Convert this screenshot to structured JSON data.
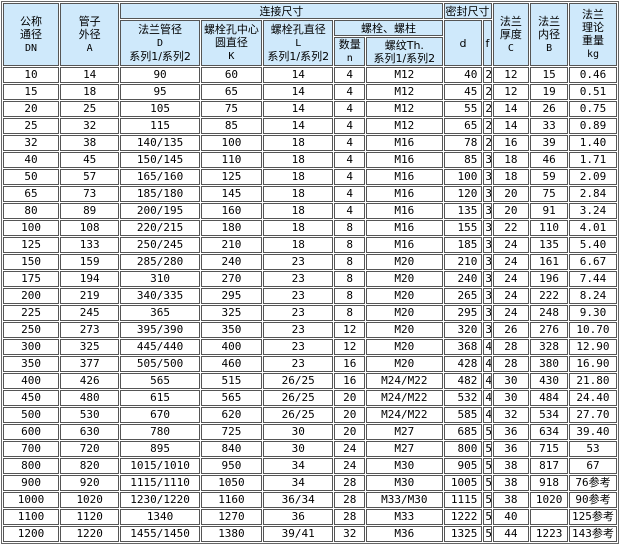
{
  "header": {
    "dn": [
      "公称",
      "通径",
      "DN"
    ],
    "a": [
      "管子",
      "外径",
      "A"
    ],
    "conn": "连接尺寸",
    "seal": "密封尺寸",
    "c": [
      "法兰",
      "厚度",
      "C"
    ],
    "b": [
      "法兰",
      "内径",
      "B"
    ],
    "kg": [
      "法兰",
      "理论",
      "重量",
      "kg"
    ],
    "d_col": [
      "法兰管径",
      "D",
      "系列1/系列2"
    ],
    "k_col": [
      "螺栓孔中心",
      "圆直径",
      "K"
    ],
    "l_col": [
      "螺栓孔直径",
      "L",
      "系列1/系列2"
    ],
    "bolt": "螺栓、螺柱",
    "n_col": [
      "数量",
      "n"
    ],
    "th_col": [
      "螺纹Th.",
      "系列1/系列2"
    ],
    "seal_d": "d",
    "seal_f": "f"
  },
  "rows": [
    [
      "10",
      "14",
      "90",
      "60",
      "14",
      "4",
      "M12",
      "40",
      "2",
      "12",
      "15",
      "0.46"
    ],
    [
      "15",
      "18",
      "95",
      "65",
      "14",
      "4",
      "M12",
      "45",
      "2",
      "12",
      "19",
      "0.51"
    ],
    [
      "20",
      "25",
      "105",
      "75",
      "14",
      "4",
      "M12",
      "55",
      "2",
      "14",
      "26",
      "0.75"
    ],
    [
      "25",
      "32",
      "115",
      "85",
      "14",
      "4",
      "M12",
      "65",
      "2",
      "14",
      "33",
      "0.89"
    ],
    [
      "32",
      "38",
      "140/135",
      "100",
      "18",
      "4",
      "M16",
      "78",
      "2",
      "16",
      "39",
      "1.40"
    ],
    [
      "40",
      "45",
      "150/145",
      "110",
      "18",
      "4",
      "M16",
      "85",
      "3",
      "18",
      "46",
      "1.71"
    ],
    [
      "50",
      "57",
      "165/160",
      "125",
      "18",
      "4",
      "M16",
      "100",
      "3",
      "18",
      "59",
      "2.09"
    ],
    [
      "65",
      "73",
      "185/180",
      "145",
      "18",
      "4",
      "M16",
      "120",
      "3",
      "20",
      "75",
      "2.84"
    ],
    [
      "80",
      "89",
      "200/195",
      "160",
      "18",
      "4",
      "M16",
      "135",
      "3",
      "20",
      "91",
      "3.24"
    ],
    [
      "100",
      "108",
      "220/215",
      "180",
      "18",
      "8",
      "M16",
      "155",
      "3",
      "22",
      "110",
      "4.01"
    ],
    [
      "125",
      "133",
      "250/245",
      "210",
      "18",
      "8",
      "M16",
      "185",
      "3",
      "24",
      "135",
      "5.40"
    ],
    [
      "150",
      "159",
      "285/280",
      "240",
      "23",
      "8",
      "M20",
      "210",
      "3",
      "24",
      "161",
      "6.67"
    ],
    [
      "175",
      "194",
      "310",
      "270",
      "23",
      "8",
      "M20",
      "240",
      "3",
      "24",
      "196",
      "7.44"
    ],
    [
      "200",
      "219",
      "340/335",
      "295",
      "23",
      "8",
      "M20",
      "265",
      "3",
      "24",
      "222",
      "8.24"
    ],
    [
      "225",
      "245",
      "365",
      "325",
      "23",
      "8",
      "M20",
      "295",
      "3",
      "24",
      "248",
      "9.30"
    ],
    [
      "250",
      "273",
      "395/390",
      "350",
      "23",
      "12",
      "M20",
      "320",
      "3",
      "26",
      "276",
      "10.70"
    ],
    [
      "300",
      "325",
      "445/440",
      "400",
      "23",
      "12",
      "M20",
      "368",
      "4",
      "28",
      "328",
      "12.90"
    ],
    [
      "350",
      "377",
      "505/500",
      "460",
      "23",
      "16",
      "M20",
      "428",
      "4",
      "28",
      "380",
      "16.90"
    ],
    [
      "400",
      "426",
      "565",
      "515",
      "26/25",
      "16",
      "M24/M22",
      "482",
      "4",
      "30",
      "430",
      "21.80"
    ],
    [
      "450",
      "480",
      "615",
      "565",
      "26/25",
      "20",
      "M24/M22",
      "532",
      "4",
      "30",
      "484",
      "24.40"
    ],
    [
      "500",
      "530",
      "670",
      "620",
      "26/25",
      "20",
      "M24/M22",
      "585",
      "4",
      "32",
      "534",
      "27.70"
    ],
    [
      "600",
      "630",
      "780",
      "725",
      "30",
      "20",
      "M27",
      "685",
      "5",
      "36",
      "634",
      "39.40"
    ],
    [
      "700",
      "720",
      "895",
      "840",
      "30",
      "24",
      "M27",
      "800",
      "5",
      "36",
      "715",
      "53"
    ],
    [
      "800",
      "820",
      "1015/1010",
      "950",
      "34",
      "24",
      "M30",
      "905",
      "5",
      "38",
      "817",
      "67"
    ],
    [
      "900",
      "920",
      "1115/1110",
      "1050",
      "34",
      "28",
      "M30",
      "1005",
      "5",
      "38",
      "918",
      "76参考"
    ],
    [
      "1000",
      "1020",
      "1230/1220",
      "1160",
      "36/34",
      "28",
      "M33/M30",
      "1115",
      "5",
      "38",
      "1020",
      "90参考"
    ],
    [
      "1100",
      "1120",
      "1340",
      "1270",
      "36",
      "28",
      "M33",
      "1222",
      "5",
      "40",
      "",
      "125参考"
    ],
    [
      "1200",
      "1220",
      "1455/1450",
      "1380",
      "39/41",
      "32",
      "M36",
      "1325",
      "5",
      "44",
      "1223",
      "143参考"
    ]
  ]
}
